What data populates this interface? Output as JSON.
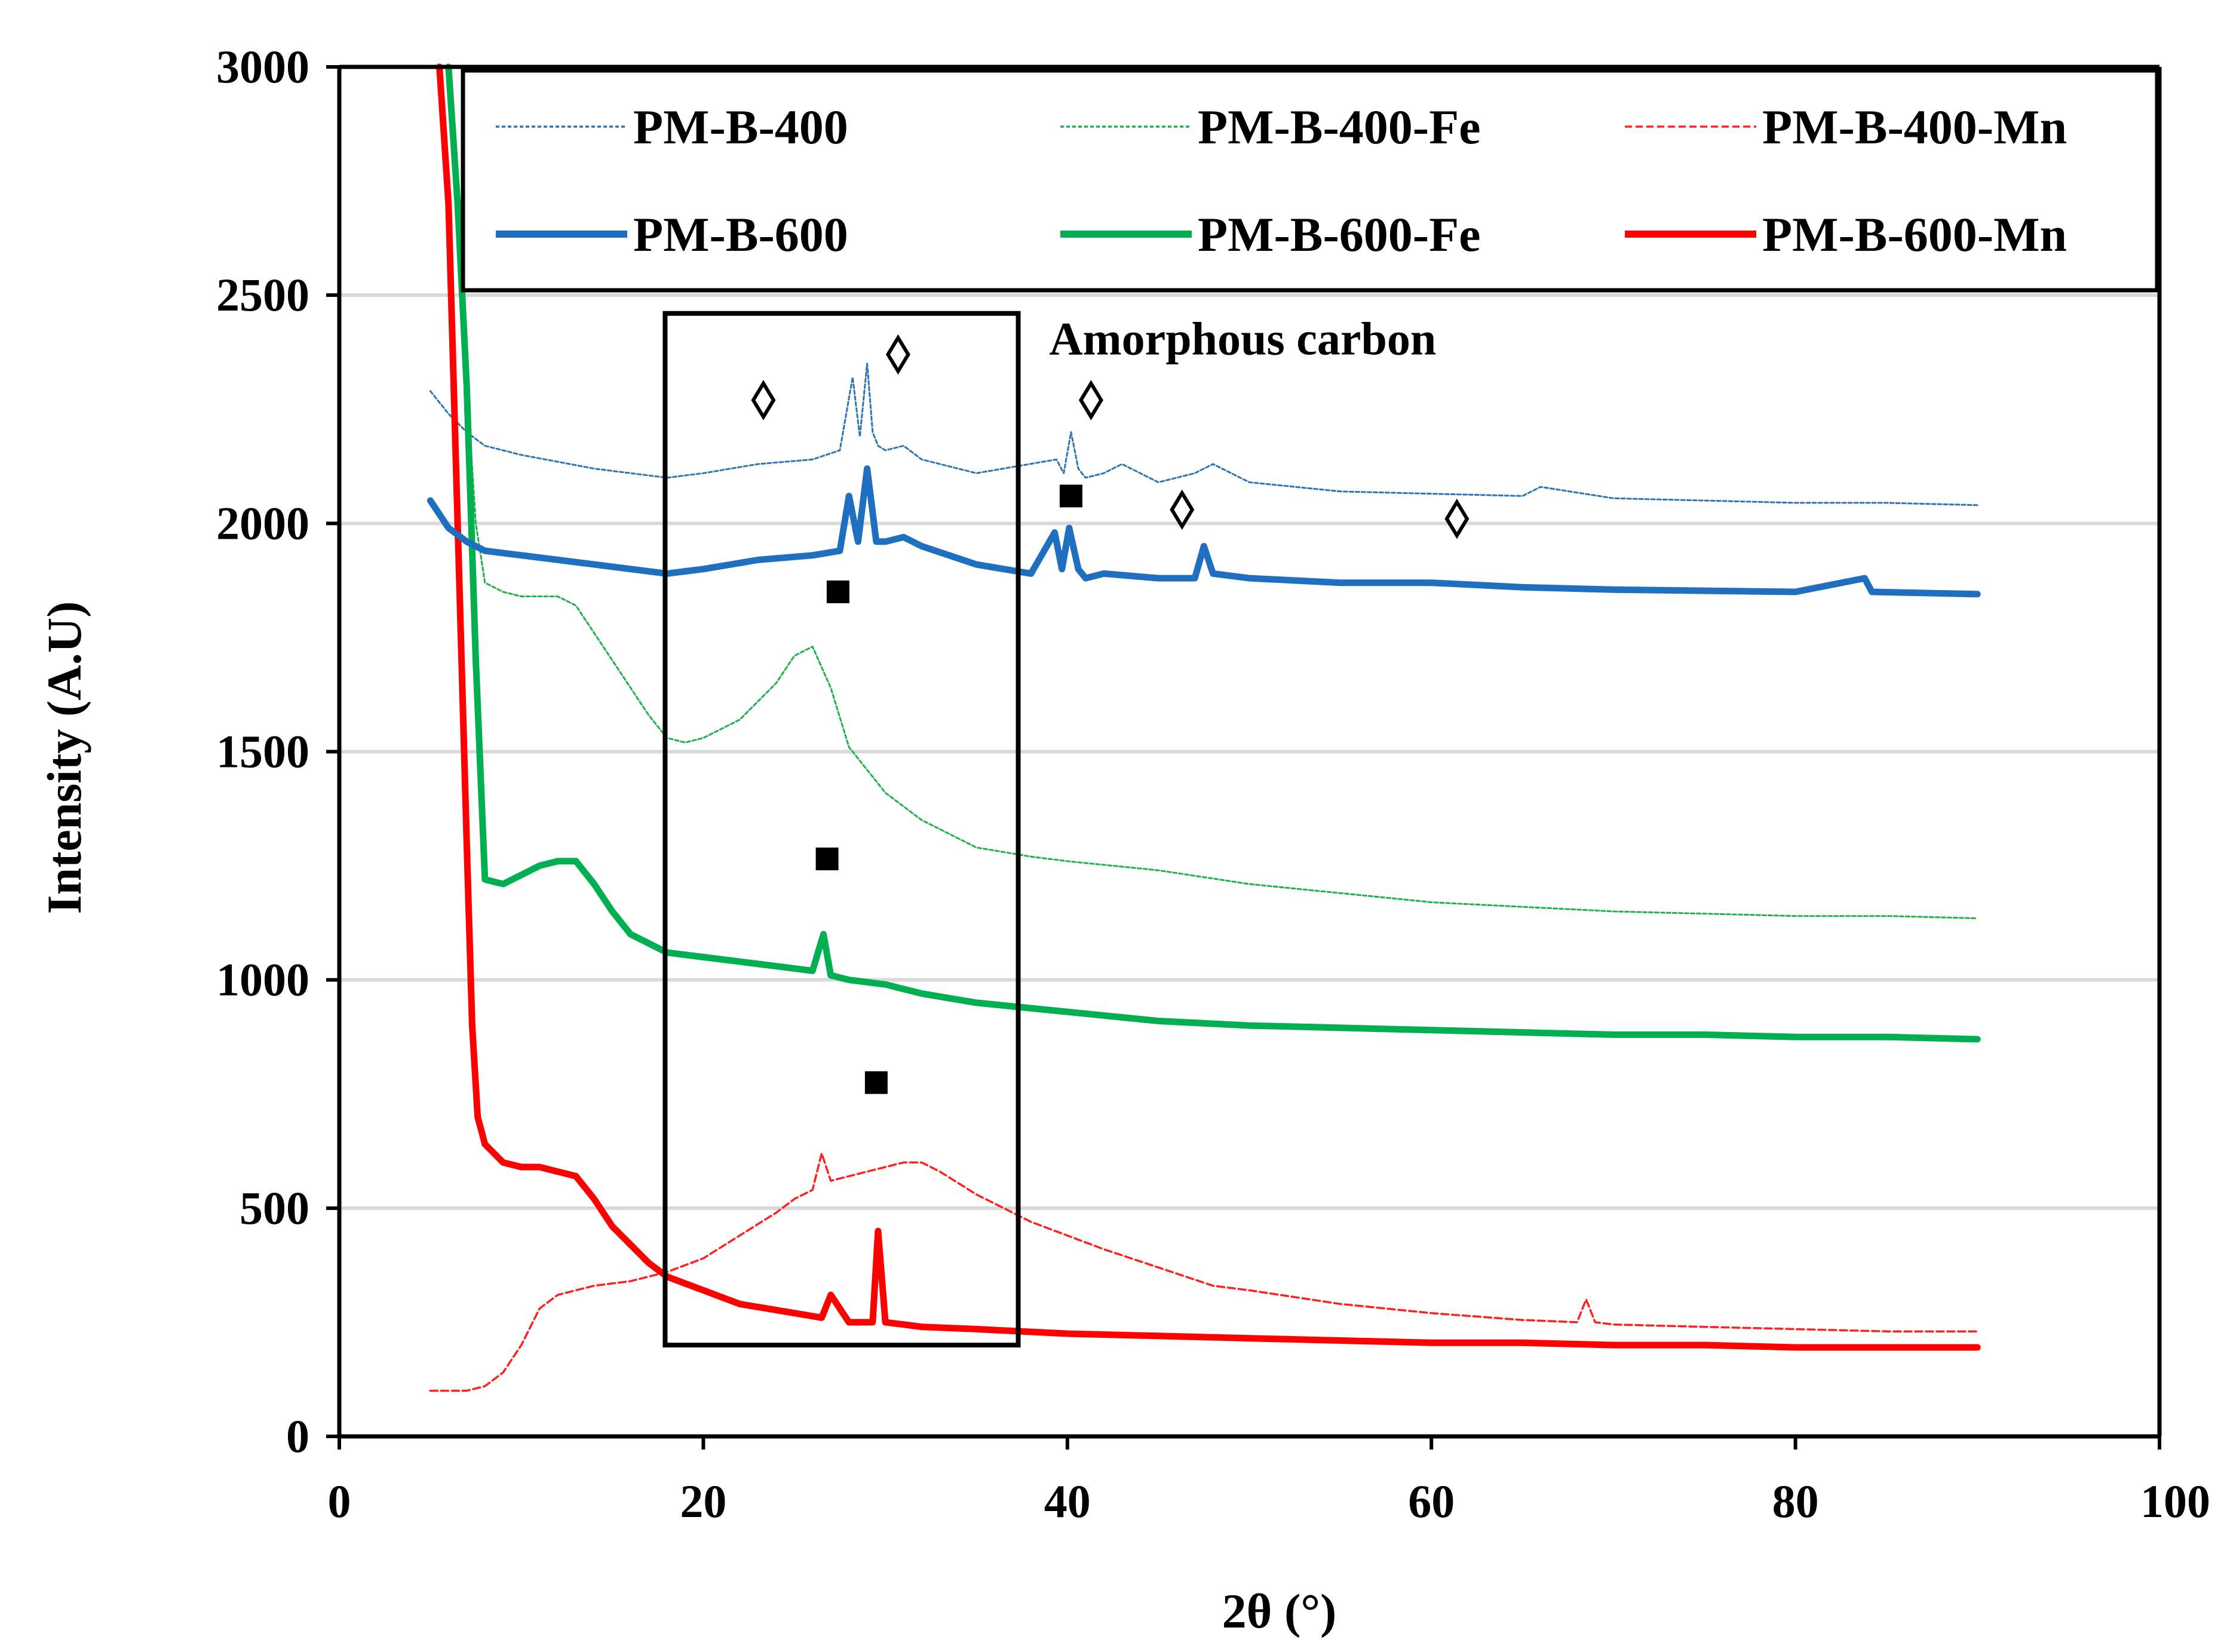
{
  "chart_data": {
    "type": "line",
    "title": "",
    "xlabel": "2θ (°)",
    "ylabel": "Intensity (A.U)",
    "xlim": [
      0,
      100
    ],
    "ylim": [
      0,
      3000
    ],
    "xticks": [
      0,
      20,
      40,
      60,
      80,
      100
    ],
    "yticks": [
      0,
      500,
      1000,
      1500,
      2000,
      2500,
      3000
    ],
    "grid": "horizontal",
    "legend_position": "top",
    "series": [
      {
        "name": "PM-B-400",
        "color": "#2e75b6",
        "style": "dotted-thin",
        "x": [
          5,
          6,
          7,
          8,
          10,
          14,
          18,
          20,
          23,
          26,
          27.5,
          28.2,
          28.6,
          29.0,
          29.3,
          29.6,
          30,
          31,
          32,
          35,
          39.4,
          39.8,
          40.2,
          40.6,
          41,
          42,
          43,
          45,
          47,
          48,
          50,
          55,
          60,
          65,
          66,
          70,
          75,
          80,
          85,
          90
        ],
        "y": [
          2290,
          2240,
          2200,
          2170,
          2150,
          2120,
          2100,
          2110,
          2130,
          2140,
          2160,
          2320,
          2190,
          2350,
          2200,
          2170,
          2160,
          2170,
          2140,
          2110,
          2140,
          2110,
          2200,
          2120,
          2100,
          2110,
          2130,
          2090,
          2110,
          2130,
          2090,
          2070,
          2065,
          2060,
          2080,
          2055,
          2050,
          2045,
          2045,
          2040
        ]
      },
      {
        "name": "PM-B-600",
        "color": "#1f6fc0",
        "style": "solid-thick",
        "x": [
          5,
          6,
          7,
          8,
          10,
          14,
          18,
          20,
          23,
          26,
          27.5,
          28.0,
          28.5,
          29.0,
          29.5,
          30,
          31,
          32,
          35,
          38,
          39.3,
          39.7,
          40.1,
          40.6,
          41,
          42,
          45,
          47,
          47.5,
          48,
          50,
          55,
          60,
          65,
          70,
          80,
          83.8,
          84.2,
          90
        ],
        "y": [
          2050,
          1990,
          1960,
          1940,
          1930,
          1910,
          1890,
          1900,
          1920,
          1930,
          1940,
          2060,
          1960,
          2120,
          1960,
          1960,
          1970,
          1950,
          1910,
          1890,
          1980,
          1900,
          1990,
          1900,
          1880,
          1890,
          1880,
          1880,
          1950,
          1890,
          1880,
          1870,
          1870,
          1860,
          1855,
          1850,
          1880,
          1850,
          1845
        ]
      },
      {
        "name": "PM-B-400-Fe",
        "color": "#1fb24a",
        "style": "dotted-thin",
        "x": [
          6.0,
          6.5,
          7.0,
          7.5,
          8,
          9,
          10,
          12,
          13,
          15,
          17,
          18,
          19,
          20,
          22,
          24,
          25,
          26,
          27,
          28,
          30,
          32,
          35,
          38,
          40,
          45,
          50,
          55,
          60,
          65,
          70,
          75,
          80,
          85,
          90
        ],
        "y": [
          3000,
          2700,
          2300,
          2000,
          1870,
          1850,
          1840,
          1840,
          1820,
          1700,
          1580,
          1530,
          1520,
          1530,
          1570,
          1650,
          1710,
          1730,
          1640,
          1510,
          1410,
          1350,
          1290,
          1270,
          1260,
          1240,
          1210,
          1190,
          1170,
          1160,
          1150,
          1145,
          1140,
          1140,
          1135
        ]
      },
      {
        "name": "PM-B-600-Fe",
        "color": "#00b050",
        "style": "solid-thick",
        "x": [
          6.0,
          6.5,
          7.0,
          7.5,
          8,
          9,
          10,
          11,
          12,
          13,
          14,
          15,
          16,
          18,
          20,
          22,
          24,
          26,
          26.6,
          27,
          28,
          30,
          32,
          35,
          40,
          45,
          50,
          55,
          60,
          65,
          70,
          75,
          80,
          85,
          90
        ],
        "y": [
          3000,
          2700,
          2300,
          1700,
          1220,
          1210,
          1230,
          1250,
          1260,
          1260,
          1210,
          1150,
          1100,
          1060,
          1050,
          1040,
          1030,
          1020,
          1100,
          1010,
          1000,
          990,
          970,
          950,
          930,
          910,
          900,
          895,
          890,
          885,
          880,
          880,
          875,
          875,
          870
        ]
      },
      {
        "name": "PM-B-400-Mn",
        "color": "#ff2020",
        "style": "dashed-thin",
        "x": [
          5,
          7,
          8,
          9,
          10,
          11,
          12,
          13,
          14,
          16,
          18,
          20,
          22,
          24,
          25,
          26,
          26.5,
          27,
          28,
          30,
          31,
          32,
          33,
          35,
          38,
          40,
          42,
          45,
          48,
          50,
          55,
          60,
          65,
          68,
          68.5,
          69,
          70,
          75,
          80,
          85,
          90
        ],
        "y": [
          100,
          100,
          110,
          140,
          200,
          280,
          310,
          320,
          330,
          340,
          360,
          390,
          440,
          490,
          520,
          540,
          620,
          560,
          570,
          590,
          600,
          600,
          580,
          530,
          470,
          440,
          410,
          370,
          330,
          320,
          290,
          270,
          255,
          250,
          300,
          250,
          245,
          240,
          235,
          230,
          230
        ]
      },
      {
        "name": "PM-B-600-Mn",
        "color": "#ff0000",
        "style": "solid-thick",
        "x": [
          5.5,
          6.0,
          6.5,
          7.0,
          7.3,
          7.6,
          8.0,
          9,
          10,
          11,
          12,
          13,
          14,
          15,
          16,
          17,
          18,
          20,
          22,
          25,
          26.5,
          27,
          28,
          29.3,
          29.6,
          30,
          31,
          32,
          35,
          40,
          45,
          50,
          55,
          60,
          65,
          70,
          75,
          80,
          85,
          90
        ],
        "y": [
          3000,
          2700,
          2000,
          1300,
          900,
          700,
          640,
          600,
          590,
          590,
          580,
          570,
          520,
          460,
          420,
          380,
          350,
          320,
          290,
          270,
          260,
          310,
          250,
          250,
          450,
          250,
          245,
          240,
          235,
          225,
          220,
          215,
          210,
          205,
          205,
          200,
          200,
          195,
          195,
          195
        ]
      }
    ],
    "annotations": [
      {
        "type": "box",
        "x0": 17.9,
        "x1": 37.3,
        "y0": 200,
        "y1": 2460
      },
      {
        "type": "text",
        "text": "Amorphous carbon",
        "x": 39.0,
        "y": 2370
      },
      {
        "type": "diamond",
        "x": 23.3,
        "y": 2270
      },
      {
        "type": "diamond",
        "x": 30.7,
        "y": 2370
      },
      {
        "type": "diamond",
        "x": 41.3,
        "y": 2270
      },
      {
        "type": "diamond",
        "x": 46.3,
        "y": 2030
      },
      {
        "type": "diamond",
        "x": 61.4,
        "y": 2010
      },
      {
        "type": "square",
        "x": 27.4,
        "y": 1850
      },
      {
        "type": "square",
        "x": 40.2,
        "y": 2060
      },
      {
        "type": "square",
        "x": 26.8,
        "y": 1265
      },
      {
        "type": "square",
        "x": 29.5,
        "y": 775
      }
    ]
  }
}
